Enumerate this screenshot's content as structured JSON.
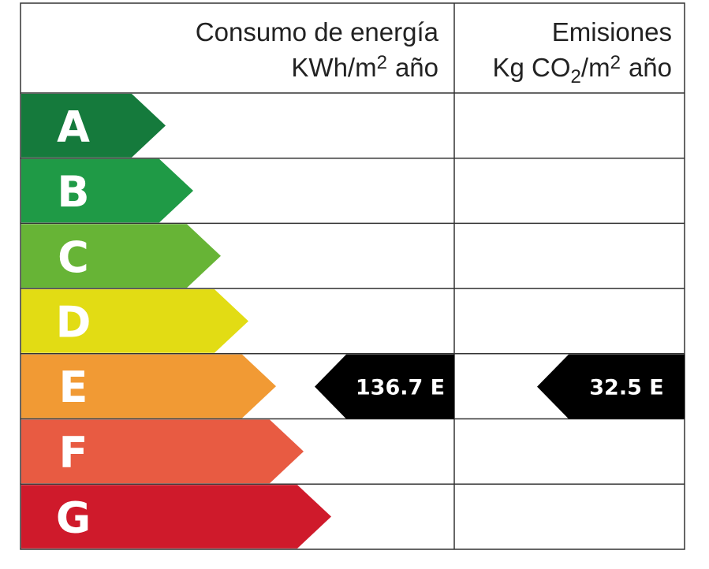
{
  "header": {
    "energy": {
      "title": "Consumo de energía",
      "unit": [
        "KWh/m",
        "2",
        "año"
      ]
    },
    "emissions": {
      "title": "Emisiones",
      "unit": [
        "Kg CO",
        "2",
        "/m",
        "2",
        "año"
      ]
    }
  },
  "rows": [
    {
      "letter": "A",
      "color": "#157a3c"
    },
    {
      "letter": "B",
      "color": "#1f9a46"
    },
    {
      "letter": "C",
      "color": "#67b436"
    },
    {
      "letter": "D",
      "color": "#e2dc14"
    },
    {
      "letter": "E",
      "color": "#f19a34"
    },
    {
      "letter": "F",
      "color": "#e85b42"
    },
    {
      "letter": "G",
      "color": "#cf1a2b"
    }
  ],
  "indicators": {
    "energy": "136.7 E",
    "emissions": "32.5 E"
  }
}
